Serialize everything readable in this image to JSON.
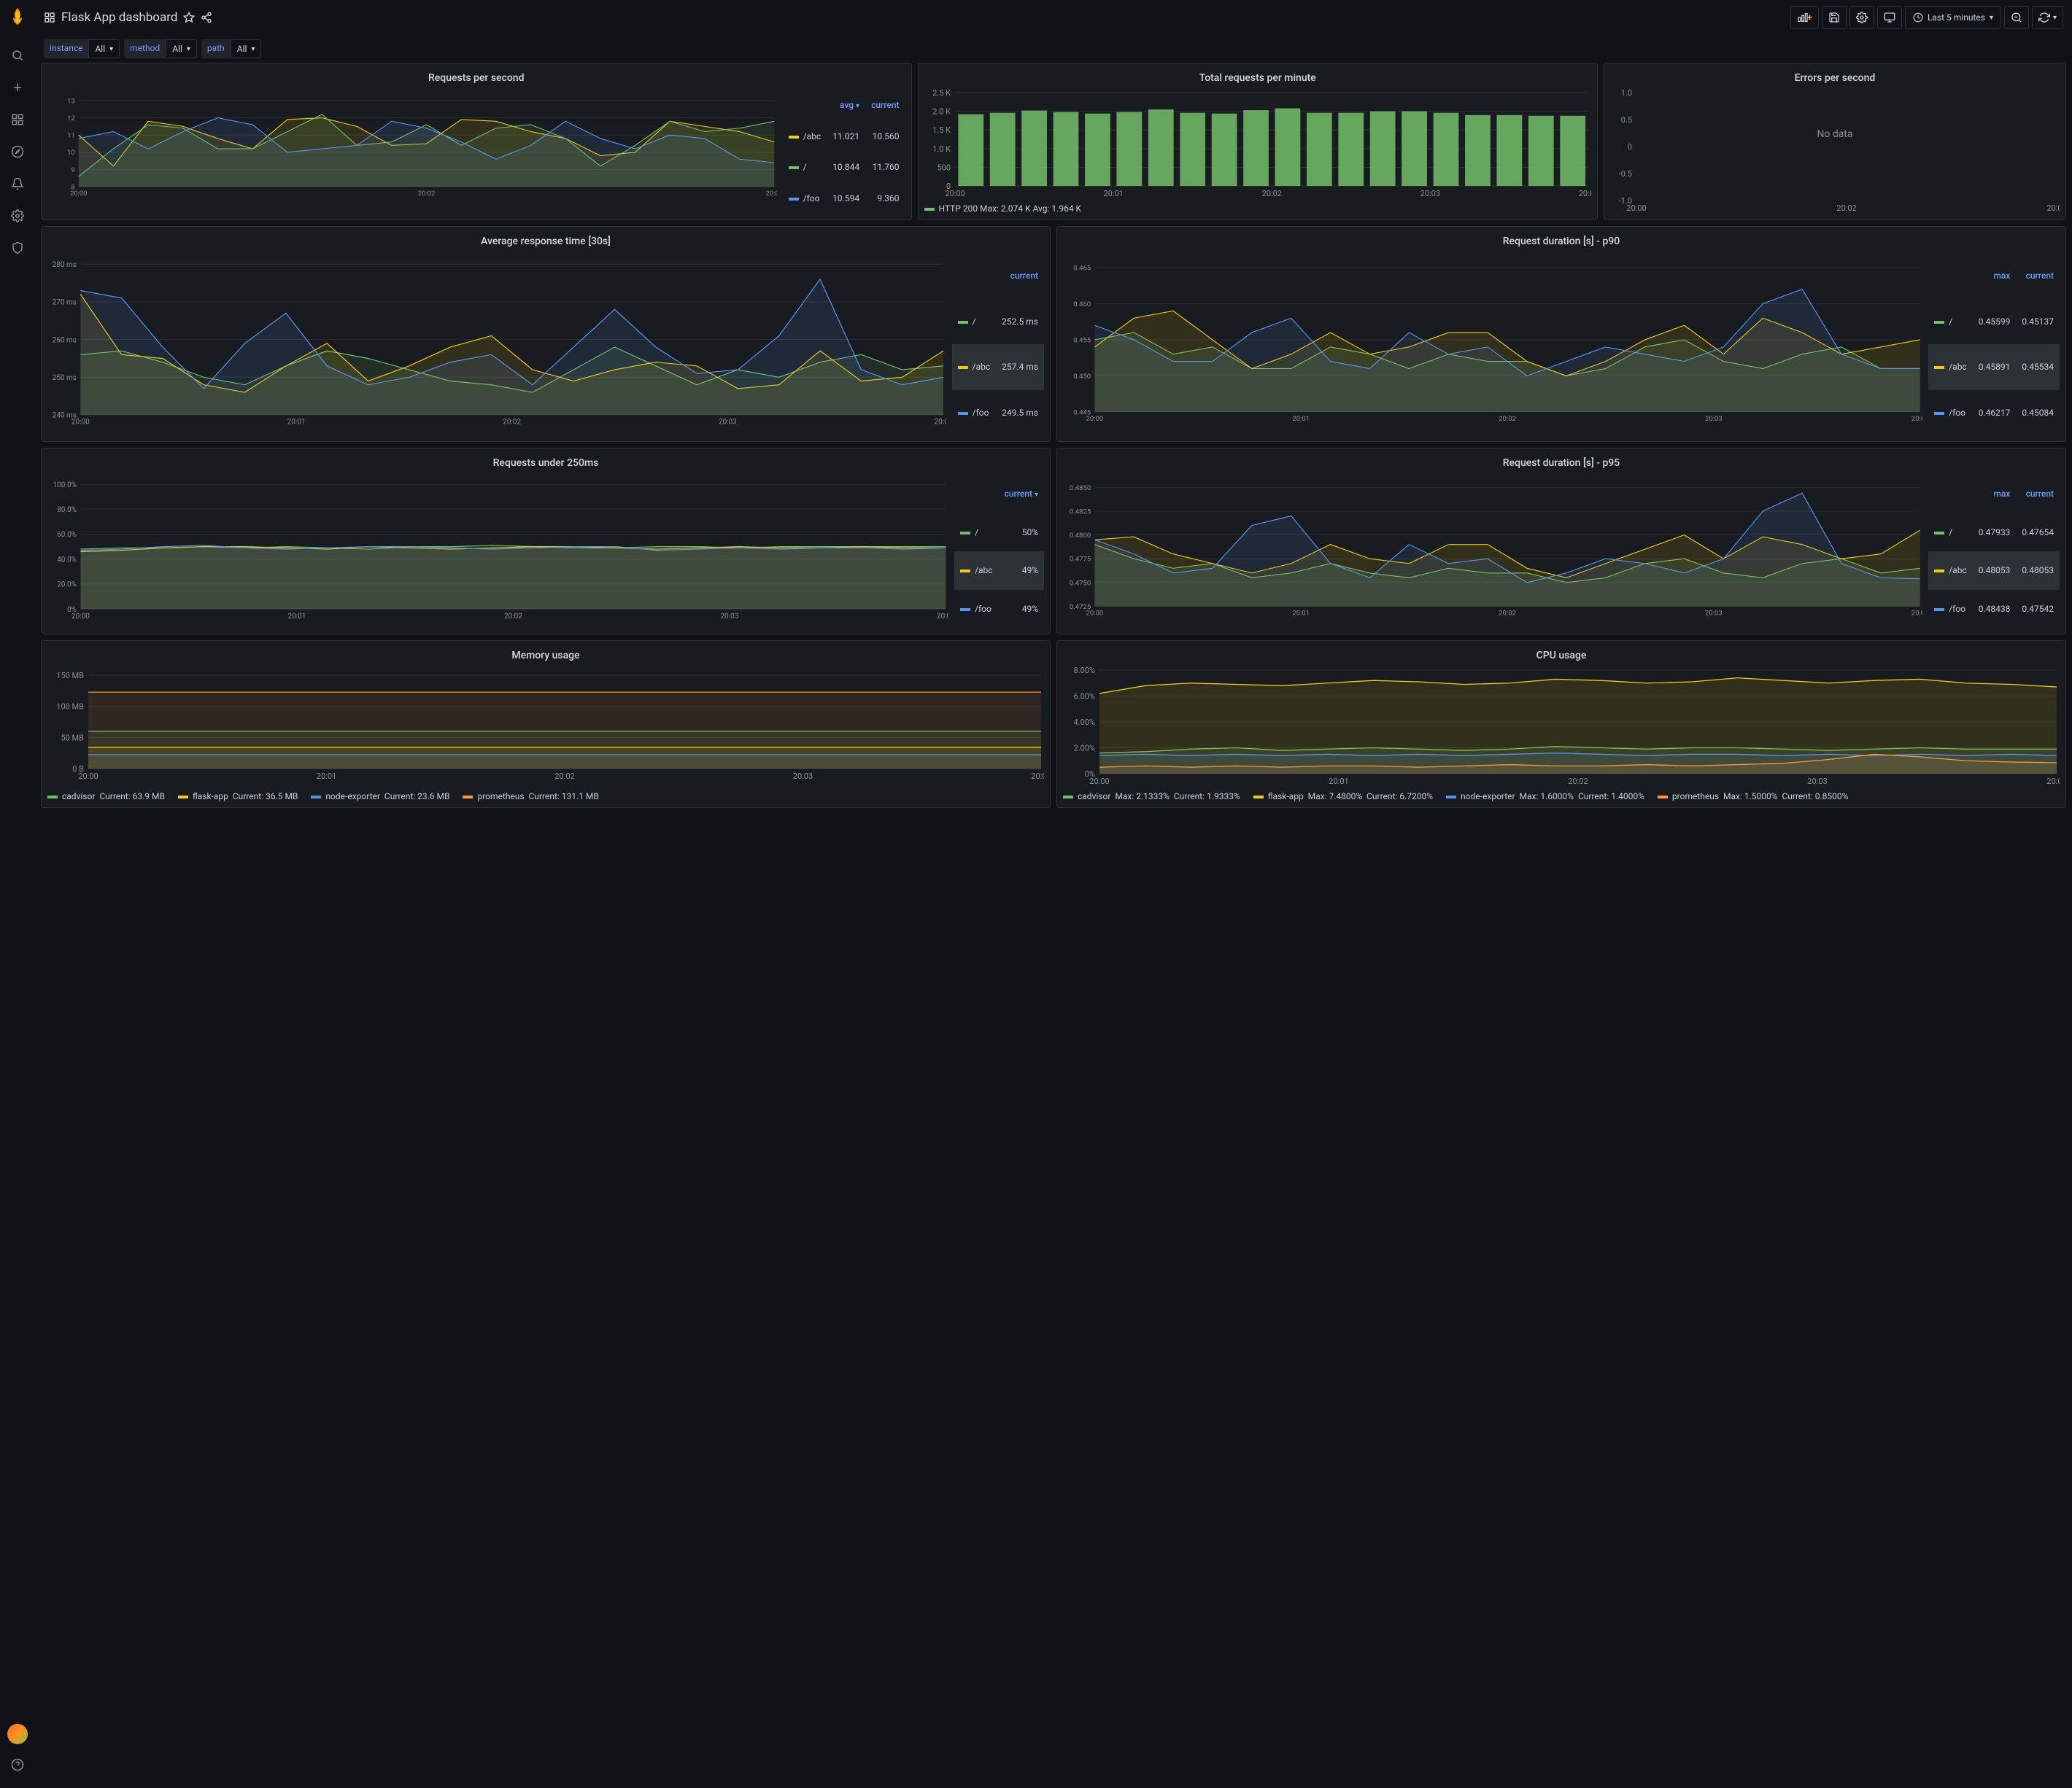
{
  "header": {
    "title": "Flask App dashboard"
  },
  "timepicker": {
    "label": "Last 5 minutes"
  },
  "vars": [
    {
      "label": "instance",
      "value": "All"
    },
    {
      "label": "method",
      "value": "All"
    },
    {
      "label": "path",
      "value": "All"
    }
  ],
  "colors": {
    "green": "#73bf69",
    "yellow": "#f2cc0c",
    "blue": "#5794f2",
    "orange": "#ff9830",
    "red": "#f2495c",
    "teal": "#37872d"
  },
  "xtimes": [
    "20:00",
    "20:01",
    "20:02",
    "20:03",
    "20:04"
  ],
  "panels": {
    "rps": {
      "title": "Requests per second",
      "yticks": [
        8,
        9,
        10,
        11,
        12,
        13
      ],
      "ylim": [
        8,
        13
      ],
      "xtimes": [
        "20:00",
        "20:02",
        "20:04"
      ],
      "series": [
        {
          "name": "/abc",
          "color": "#f2cc0c",
          "avg": "11.021",
          "current": "10.560",
          "data": [
            11.0,
            9.2,
            11.8,
            11.5,
            10.8,
            10.2,
            11.9,
            12.0,
            11.5,
            10.4,
            10.5,
            11.9,
            11.8,
            11.2,
            10.8,
            9.8,
            10.0,
            11.8,
            11.5,
            11.2,
            10.6
          ]
        },
        {
          "name": "/",
          "color": "#73bf69",
          "avg": "10.844",
          "current": "11.760",
          "data": [
            8.6,
            10.2,
            11.6,
            11.4,
            10.2,
            10.2,
            11.2,
            12.2,
            10.4,
            10.6,
            11.6,
            10.4,
            11.4,
            11.6,
            10.8,
            9.2,
            10.4,
            11.8,
            11.2,
            11.4,
            11.8
          ]
        },
        {
          "name": "/foo",
          "color": "#5794f2",
          "avg": "10.594",
          "current": "9.360",
          "data": [
            10.8,
            11.2,
            10.2,
            11.2,
            12.0,
            11.6,
            10.0,
            10.2,
            10.4,
            11.8,
            11.4,
            10.6,
            9.6,
            10.4,
            11.8,
            10.8,
            10.2,
            11.0,
            10.8,
            9.6,
            9.4
          ]
        }
      ],
      "headers": [
        "avg",
        "current"
      ],
      "sort_col": "avg"
    },
    "trpm": {
      "title": "Total requests per minute",
      "yticks": [
        "0",
        "500",
        "1.0 K",
        "1.5 K",
        "2.0 K",
        "2.5 K"
      ],
      "ylim": [
        0,
        2500
      ],
      "xtimes": [
        "20:00",
        "20:01",
        "20:02",
        "20:03",
        "20:04"
      ],
      "bars": [
        1920,
        1960,
        2020,
        1980,
        1940,
        1980,
        2050,
        1960,
        1940,
        2030,
        2080,
        1960,
        1960,
        2000,
        2000,
        1960,
        1900,
        1900,
        1880,
        1880
      ],
      "bar_color": "#73bf69",
      "legend_text": "HTTP 200   Max: 2.074 K  Avg: 1.964 K"
    },
    "eps": {
      "title": "Errors per second",
      "yticks": [
        "-1.0",
        "-0.5",
        "0",
        "0.5",
        "1.0"
      ],
      "xtimes": [
        "20:00",
        "20:02",
        "20:04"
      ],
      "nodata": "No data"
    },
    "art": {
      "title": "Average response time [30s]",
      "yticks": [
        "240 ms",
        "250 ms",
        "260 ms",
        "270 ms",
        "280 ms"
      ],
      "ylim": [
        240,
        280
      ],
      "headers": [
        "current"
      ],
      "highlight": 1,
      "series": [
        {
          "name": "/",
          "color": "#73bf69",
          "current": "252.5 ms",
          "data": [
            256,
            257,
            254,
            250,
            248,
            253,
            257,
            255,
            252,
            249,
            248,
            246,
            252,
            258,
            253,
            248,
            252,
            250,
            254,
            256,
            252,
            253
          ]
        },
        {
          "name": "/abc",
          "color": "#f2cc0c",
          "current": "257.4 ms",
          "data": [
            272,
            256,
            255,
            248,
            246,
            253,
            259,
            249,
            253,
            258,
            261,
            252,
            249,
            252,
            254,
            253,
            247,
            248,
            257,
            249,
            250,
            257
          ]
        },
        {
          "name": "/foo",
          "color": "#5794f2",
          "current": "249.5 ms",
          "data": [
            273,
            271,
            258,
            247,
            259,
            267,
            253,
            248,
            250,
            254,
            256,
            248,
            258,
            268,
            258,
            251,
            252,
            261,
            276,
            252,
            248,
            250
          ]
        }
      ]
    },
    "p90": {
      "title": "Request duration [s] - p90",
      "yticks": [
        "0.445",
        "0.450",
        "0.455",
        "0.460",
        "0.465"
      ],
      "ylim": [
        0.445,
        0.465
      ],
      "headers": [
        "max",
        "current"
      ],
      "highlight": 1,
      "series": [
        {
          "name": "/",
          "color": "#73bf69",
          "max": "0.45599",
          "current": "0.45137",
          "data": [
            0.455,
            0.456,
            0.453,
            0.454,
            0.451,
            0.451,
            0.454,
            0.453,
            0.451,
            0.453,
            0.452,
            0.452,
            0.45,
            0.451,
            0.454,
            0.455,
            0.452,
            0.451,
            0.453,
            0.454,
            0.451,
            0.451
          ]
        },
        {
          "name": "/abc",
          "color": "#f2cc0c",
          "max": "0.45891",
          "current": "0.45534",
          "data": [
            0.454,
            0.458,
            0.459,
            0.455,
            0.451,
            0.453,
            0.456,
            0.453,
            0.454,
            0.456,
            0.456,
            0.452,
            0.45,
            0.452,
            0.455,
            0.457,
            0.453,
            0.458,
            0.456,
            0.453,
            0.454,
            0.455
          ]
        },
        {
          "name": "/foo",
          "color": "#5794f2",
          "max": "0.46217",
          "current": "0.45084",
          "data": [
            0.457,
            0.455,
            0.452,
            0.452,
            0.456,
            0.458,
            0.452,
            0.451,
            0.456,
            0.453,
            0.454,
            0.45,
            0.452,
            0.454,
            0.453,
            0.452,
            0.454,
            0.46,
            0.462,
            0.453,
            0.451,
            0.451
          ]
        }
      ]
    },
    "u250": {
      "title": "Requests under 250ms",
      "yticks": [
        "0%",
        "20.0%",
        "40.0%",
        "60.0%",
        "80.0%",
        "100.0%"
      ],
      "ylim": [
        0,
        100
      ],
      "headers": [
        "current"
      ],
      "sort_col": "current",
      "highlight": 1,
      "series": [
        {
          "name": "/",
          "color": "#73bf69",
          "current": "50%",
          "data": [
            48,
            49,
            49,
            50,
            49,
            50,
            49,
            48,
            50,
            50,
            51,
            50,
            49,
            49,
            50,
            50,
            49,
            50,
            50,
            50,
            50,
            50
          ]
        },
        {
          "name": "/abc",
          "color": "#f2cc0c",
          "current": "49%",
          "data": [
            46,
            47,
            49,
            50,
            50,
            49,
            48,
            50,
            49,
            48,
            49,
            50,
            50,
            49,
            48,
            49,
            50,
            49,
            49,
            50,
            49,
            49
          ]
        },
        {
          "name": "/foo",
          "color": "#5794f2",
          "current": "49%",
          "data": [
            47,
            48,
            50,
            51,
            49,
            48,
            49,
            50,
            50,
            49,
            48,
            49,
            50,
            50,
            47,
            48,
            49,
            48,
            49,
            49,
            48,
            49
          ]
        }
      ]
    },
    "p95": {
      "title": "Request duration [s] - p95",
      "yticks": [
        "0.4725",
        "0.4750",
        "0.4775",
        "0.4800",
        "0.4825",
        "0.4850"
      ],
      "ylim": [
        0.4725,
        0.485
      ],
      "headers": [
        "max",
        "current"
      ],
      "highlight": 1,
      "series": [
        {
          "name": "/",
          "color": "#73bf69",
          "max": "0.47933",
          "current": "0.47654",
          "data": [
            0.479,
            0.4775,
            0.4765,
            0.477,
            0.4755,
            0.476,
            0.477,
            0.476,
            0.4755,
            0.4765,
            0.476,
            0.476,
            0.475,
            0.4755,
            0.477,
            0.4775,
            0.476,
            0.4755,
            0.477,
            0.4775,
            0.476,
            0.4765
          ]
        },
        {
          "name": "/abc",
          "color": "#f2cc0c",
          "max": "0.48053",
          "current": "0.48053",
          "data": [
            0.4795,
            0.4798,
            0.478,
            0.477,
            0.476,
            0.477,
            0.479,
            0.4775,
            0.477,
            0.479,
            0.479,
            0.4765,
            0.4755,
            0.477,
            0.4785,
            0.48,
            0.4775,
            0.4798,
            0.479,
            0.4775,
            0.478,
            0.4805
          ]
        },
        {
          "name": "/foo",
          "color": "#5794f2",
          "max": "0.48438",
          "current": "0.47542",
          "data": [
            0.4795,
            0.478,
            0.476,
            0.4765,
            0.481,
            0.482,
            0.477,
            0.4755,
            0.479,
            0.477,
            0.4775,
            0.475,
            0.476,
            0.4775,
            0.477,
            0.476,
            0.4775,
            0.4825,
            0.4844,
            0.477,
            0.4755,
            0.4754
          ]
        }
      ]
    },
    "mem": {
      "title": "Memory usage",
      "yticks": [
        "0 B",
        "50 MB",
        "100 MB",
        "150 MB"
      ],
      "ylim": [
        0,
        160
      ],
      "series": [
        {
          "name": "cadvisor",
          "color": "#73bf69",
          "current": "63.9 MB",
          "val": 63.9
        },
        {
          "name": "flask-app",
          "color": "#f2cc0c",
          "current": "36.5 MB",
          "val": 36.5
        },
        {
          "name": "node-exporter",
          "color": "#5794f2",
          "current": "23.6 MB",
          "val": 23.6
        },
        {
          "name": "prometheus",
          "color": "#ff9830",
          "current": "131.1 MB",
          "val": 131.1
        }
      ]
    },
    "cpu": {
      "title": "CPU usage",
      "yticks": [
        "0%",
        "2.00%",
        "4.00%",
        "6.00%",
        "8.00%"
      ],
      "ylim": [
        0,
        8
      ],
      "series": [
        {
          "name": "cadvisor",
          "color": "#73bf69",
          "max": "2.1333%",
          "current": "1.9333%",
          "data": [
            1.6,
            1.7,
            1.9,
            2.0,
            1.8,
            1.9,
            2.0,
            1.9,
            1.8,
            1.9,
            2.1,
            2.0,
            1.9,
            2.0,
            2.0,
            1.9,
            1.8,
            1.9,
            2.0,
            1.9,
            1.9,
            1.9
          ]
        },
        {
          "name": "flask-app",
          "color": "#f2cc0c",
          "max": "7.4800%",
          "current": "6.7200%",
          "data": [
            6.2,
            6.8,
            7.0,
            6.9,
            6.8,
            7.0,
            7.2,
            7.1,
            6.9,
            7.0,
            7.3,
            7.2,
            7.0,
            7.1,
            7.4,
            7.2,
            7.0,
            7.2,
            7.3,
            7.0,
            6.9,
            6.7
          ]
        },
        {
          "name": "node-exporter",
          "color": "#5794f2",
          "max": "1.6000%",
          "current": "1.4000%",
          "data": [
            1.4,
            1.5,
            1.4,
            1.5,
            1.4,
            1.5,
            1.4,
            1.5,
            1.4,
            1.5,
            1.6,
            1.5,
            1.4,
            1.5,
            1.5,
            1.4,
            1.5,
            1.4,
            1.5,
            1.4,
            1.5,
            1.4
          ]
        },
        {
          "name": "prometheus",
          "color": "#ff9830",
          "max": "1.5000%",
          "current": "0.8500%",
          "data": [
            0.5,
            0.6,
            0.5,
            0.6,
            0.5,
            0.6,
            0.6,
            0.5,
            0.6,
            0.7,
            0.6,
            0.6,
            0.7,
            0.6,
            0.7,
            0.8,
            1.1,
            1.5,
            1.3,
            1.0,
            0.9,
            0.85
          ]
        }
      ]
    }
  }
}
